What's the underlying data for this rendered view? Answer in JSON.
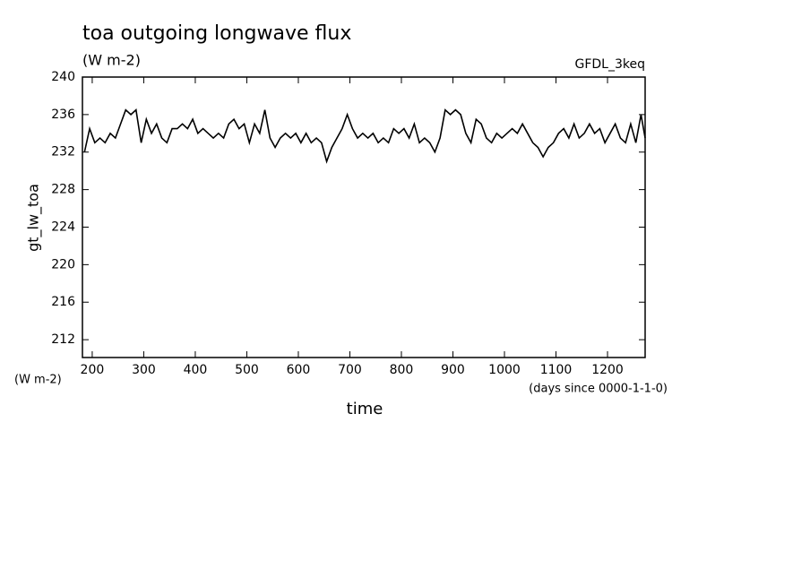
{
  "chart_data": {
    "type": "line",
    "title": "toa outgoing longwave flux",
    "subtitle": "(W m-2)",
    "annotation": "GFDL_3keq",
    "ylabel": "gt_lw_toa",
    "y_units": "(W m-2)",
    "xlabel": "time",
    "x_units": "(days since 0000-1-1-0)",
    "xlim": [
      181,
      1273
    ],
    "ylim": [
      210.1,
      240
    ],
    "xticks": [
      200,
      300,
      400,
      500,
      600,
      700,
      800,
      900,
      1000,
      1100,
      1200
    ],
    "yticks": [
      212,
      216,
      220,
      224,
      228,
      232,
      236,
      240
    ],
    "series": [
      {
        "name": "gt_lw_toa",
        "color": "#000000",
        "x": [
          185,
          195,
          205,
          215,
          225,
          235,
          245,
          255,
          265,
          275,
          285,
          295,
          305,
          315,
          325,
          335,
          345,
          355,
          365,
          375,
          385,
          395,
          405,
          415,
          425,
          435,
          445,
          455,
          465,
          475,
          485,
          495,
          505,
          515,
          525,
          535,
          545,
          555,
          565,
          575,
          585,
          595,
          605,
          615,
          625,
          635,
          645,
          655,
          665,
          675,
          685,
          695,
          705,
          715,
          725,
          735,
          745,
          755,
          765,
          775,
          785,
          795,
          805,
          815,
          825,
          835,
          845,
          855,
          865,
          875,
          885,
          895,
          905,
          915,
          925,
          935,
          945,
          955,
          965,
          975,
          985,
          995,
          1005,
          1015,
          1025,
          1035,
          1045,
          1055,
          1065,
          1075,
          1085,
          1095,
          1105,
          1115,
          1125,
          1135,
          1145,
          1155,
          1165,
          1175,
          1185,
          1195,
          1205,
          1215,
          1225,
          1235,
          1245,
          1255,
          1265,
          1273
        ],
        "values": [
          232,
          234.5,
          233,
          233.5,
          233,
          234,
          233.5,
          235,
          236.5,
          236,
          236.5,
          233,
          235.5,
          234,
          235,
          233.5,
          233,
          234.5,
          234.5,
          235,
          234.5,
          235.5,
          234,
          234.5,
          234,
          233.5,
          234,
          233.5,
          235,
          235.5,
          234.5,
          235,
          233,
          235,
          234,
          236.5,
          233.5,
          232.5,
          233.5,
          234,
          233.5,
          234,
          233,
          234,
          233,
          233.5,
          233,
          231,
          232.5,
          233.5,
          234.5,
          236,
          234.5,
          233.5,
          234,
          233.5,
          234,
          233,
          233.5,
          233,
          234.5,
          234,
          234.5,
          233.5,
          235,
          233,
          233.5,
          233,
          232,
          233.5,
          236.5,
          236,
          236.5,
          236,
          234,
          233,
          235.5,
          235,
          233.5,
          233,
          234,
          233.5,
          234,
          234.5,
          234,
          235,
          234,
          233,
          232.5,
          231.5,
          232.5,
          233,
          234,
          234.5,
          233.5,
          235,
          233.5,
          234,
          235,
          234,
          234.5,
          233,
          234,
          235,
          233.5,
          233,
          235,
          233,
          236,
          233.5
        ]
      }
    ]
  }
}
